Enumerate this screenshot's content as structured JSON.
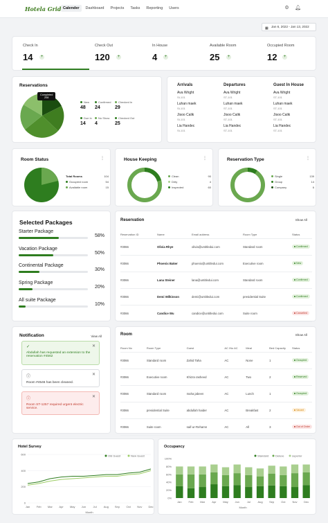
{
  "app": {
    "logo": "Hotela Grid",
    "nav": [
      "Calender",
      "Dashboard",
      "Projects",
      "Tasks",
      "Reporting",
      "Users"
    ],
    "active": "Calender",
    "date_range": "Jan 6, 2022 - Jan 13, 2022"
  },
  "stats": [
    {
      "label": "Check In",
      "value": "14"
    },
    {
      "label": "Check Out",
      "value": "120"
    },
    {
      "label": "In House",
      "value": "4"
    },
    {
      "label": "Available Room",
      "value": "25"
    },
    {
      "label": "Occupied Room",
      "value": "12"
    }
  ],
  "reservations": {
    "title": "Reservations",
    "tooltip_value": "Completed",
    "tooltip_sub": "208",
    "legend": [
      {
        "label": "New",
        "value": "48",
        "color": "#2e7d1f"
      },
      {
        "label": "Confirmed",
        "value": "24",
        "color": "#2e7d1f"
      },
      {
        "label": "Checked In",
        "value": "29",
        "color": "#6aa84f"
      },
      {
        "label": "Due In",
        "value": "14",
        "color": "#2e7d1f"
      },
      {
        "label": "No Show",
        "value": "4",
        "color": "#6aa84f"
      },
      {
        "label": "Checked Out",
        "value": "25",
        "color": "#2e7d1f"
      }
    ]
  },
  "guest_lists": {
    "arrivals": {
      "title": "Arrivals",
      "items": [
        {
          "name": "Ava Wright",
          "room": "St-101"
        },
        {
          "name": "Luhan maek",
          "room": "St-101"
        },
        {
          "name": "Jisoo Calik",
          "room": "St-101"
        },
        {
          "name": "Lia Handec",
          "room": "St-101"
        }
      ]
    },
    "departures": {
      "title": "Departures",
      "items": [
        {
          "name": "Ava Wright",
          "room": "ST-101"
        },
        {
          "name": "Luhan maek",
          "room": "ST-101"
        },
        {
          "name": "Jisoo Calik",
          "room": "ST-101"
        },
        {
          "name": "Lia Handec",
          "room": "ST-101"
        }
      ]
    },
    "guest_in_house": {
      "title": "Guest In House",
      "items": [
        {
          "name": "Ava Wright",
          "room": "ST-101"
        },
        {
          "name": "Luhan maek",
          "room": "ST-101"
        },
        {
          "name": "Jisoo Calik",
          "room": "ST-101"
        },
        {
          "name": "Lia Handec",
          "room": "ST-101"
        }
      ]
    }
  },
  "room_status": {
    "title": "Room Status",
    "legend": [
      {
        "label": "Total Rooms",
        "value": "104"
      },
      {
        "label": "Occupied room",
        "value": "54"
      },
      {
        "label": "Available room",
        "value": "15"
      }
    ]
  },
  "house_keeping": {
    "title": "House Keeping",
    "legend": [
      {
        "label": "Clean",
        "value": "90"
      },
      {
        "label": "Dirty",
        "value": "4"
      },
      {
        "label": "Inspected",
        "value": "60"
      }
    ]
  },
  "reservation_type": {
    "title": "Reservation Type",
    "legend": [
      {
        "label": "Single",
        "value": "139"
      },
      {
        "label": "Group",
        "value": "14"
      },
      {
        "label": "Company",
        "value": "6"
      }
    ]
  },
  "packages": {
    "title": "Selected Packages",
    "items": [
      {
        "name": "Starter Package",
        "pct": 58,
        "label": "58%"
      },
      {
        "name": "Vacation Package",
        "pct": 50,
        "label": "50%"
      },
      {
        "name": "Continental Package",
        "pct": 30,
        "label": "30%"
      },
      {
        "name": "Spring Package",
        "pct": 20,
        "label": "20%"
      },
      {
        "name": "All suite Package",
        "pct": 10,
        "label": "10%"
      }
    ]
  },
  "reservation_table": {
    "title": "Reservation",
    "show_all": "Show All",
    "columns": [
      "Reservation ID",
      "Name",
      "Email address",
      "Room Type",
      "Status"
    ],
    "rows": [
      [
        "#3066",
        "Olivia Rhye",
        "olivia@untitledui.com",
        "Standard room",
        "Confirmed",
        "g"
      ],
      [
        "#3066",
        "Phoenix Baker",
        "phoenix@untitledui.com",
        "Executive room",
        "New",
        "g"
      ],
      [
        "#3066",
        "Lana Steiner",
        "lana@untitledui.com",
        "Standard room",
        "Confirmed",
        "g"
      ],
      [
        "#3066",
        "Demi Wilkinson",
        "demi@untitledui.com",
        "presidential Suite",
        "Confirmed",
        "g"
      ],
      [
        "#3066",
        "Candice Wu",
        "candice@untitledui.com",
        "Suite room",
        "Cancelled",
        "r"
      ]
    ]
  },
  "notifications": {
    "title": "Notification",
    "view_all": "View All",
    "items": [
      {
        "text": "Abdullah has requested an extension to the reservation #4562",
        "kind": "success"
      },
      {
        "text": "Room #4546 has been cleaned.",
        "kind": "info"
      },
      {
        "text": "Room ST-1257 required urgent electric service.",
        "kind": "error"
      }
    ]
  },
  "room_table": {
    "title": "Room",
    "show_all": "Show All",
    "columns": [
      "Room No",
      "Room Type",
      "Guest",
      "AC /No AC",
      "Meal",
      "Bed Capacity",
      "Status"
    ],
    "rows": [
      [
        "#3066",
        "Standard room",
        "Zahid Taha",
        "AC",
        "None",
        "1",
        "Occupied",
        "g"
      ],
      [
        "#3066",
        "Executive room",
        "Khizra rasheed",
        "AC",
        "Two",
        "2",
        "Reserved",
        "g"
      ],
      [
        "#3066",
        "Standard room",
        "maha jabeen",
        "AC",
        "Lunch",
        "1",
        "Occupied",
        "g"
      ],
      [
        "#3066",
        "presidential Suite",
        "abdullah haider",
        "AC",
        "Breakfast",
        "2",
        "Vacant",
        "o"
      ],
      [
        "#3066",
        "Suite room",
        "saif-ur-Rehamn",
        "AC",
        "All",
        "3",
        "Out of Order",
        "r"
      ]
    ]
  },
  "chart_data": [
    {
      "type": "line",
      "title": "Hotel Survey",
      "xlabel": "Month",
      "ylabel": "",
      "categories": [
        "Jan",
        "Feb",
        "Mar",
        "Apr",
        "May",
        "Jun",
        "Jul",
        "Aug",
        "Sep",
        "Oct",
        "Nov",
        "Dec"
      ],
      "ylim": [
        0,
        600
      ],
      "yticks": [
        0,
        200,
        400,
        600
      ],
      "legend": "top-right",
      "series": [
        {
          "name": "Old Guest",
          "color": "#2e7d1f",
          "values": [
            240,
            260,
            300,
            320,
            330,
            330,
            340,
            350,
            350,
            370,
            380,
            420
          ]
        },
        {
          "name": "New Guest",
          "color": "#9ccc65",
          "values": [
            220,
            240,
            270,
            290,
            300,
            310,
            320,
            330,
            330,
            350,
            360,
            400
          ]
        }
      ]
    },
    {
      "type": "bar",
      "title": "Occupancy",
      "xlabel": "Month",
      "ylabel": "",
      "categories": [
        "Jan",
        "Feb",
        "Mar",
        "Apr",
        "May",
        "Jun",
        "Jul",
        "Aug",
        "Sep",
        "Oct",
        "Nov",
        "Dec"
      ],
      "ylim": [
        0,
        100
      ],
      "yticks": [
        "0%",
        "20%",
        "40%",
        "60%",
        "80%",
        "100%"
      ],
      "stacked": true,
      "legend": "top-right",
      "series": [
        {
          "name": "Standard",
          "color": "#2e7d1f",
          "values": [
            30,
            25,
            28,
            35,
            30,
            33,
            28,
            30,
            32,
            30,
            28,
            33
          ]
        },
        {
          "name": "Deluxe",
          "color": "#6aa84f",
          "values": [
            30,
            35,
            32,
            30,
            28,
            30,
            30,
            25,
            30,
            28,
            35,
            32
          ]
        },
        {
          "name": "superior",
          "color": "#a9cf8f",
          "values": [
            20,
            20,
            20,
            20,
            20,
            22,
            20,
            20,
            20,
            22,
            22,
            20
          ]
        }
      ]
    }
  ]
}
